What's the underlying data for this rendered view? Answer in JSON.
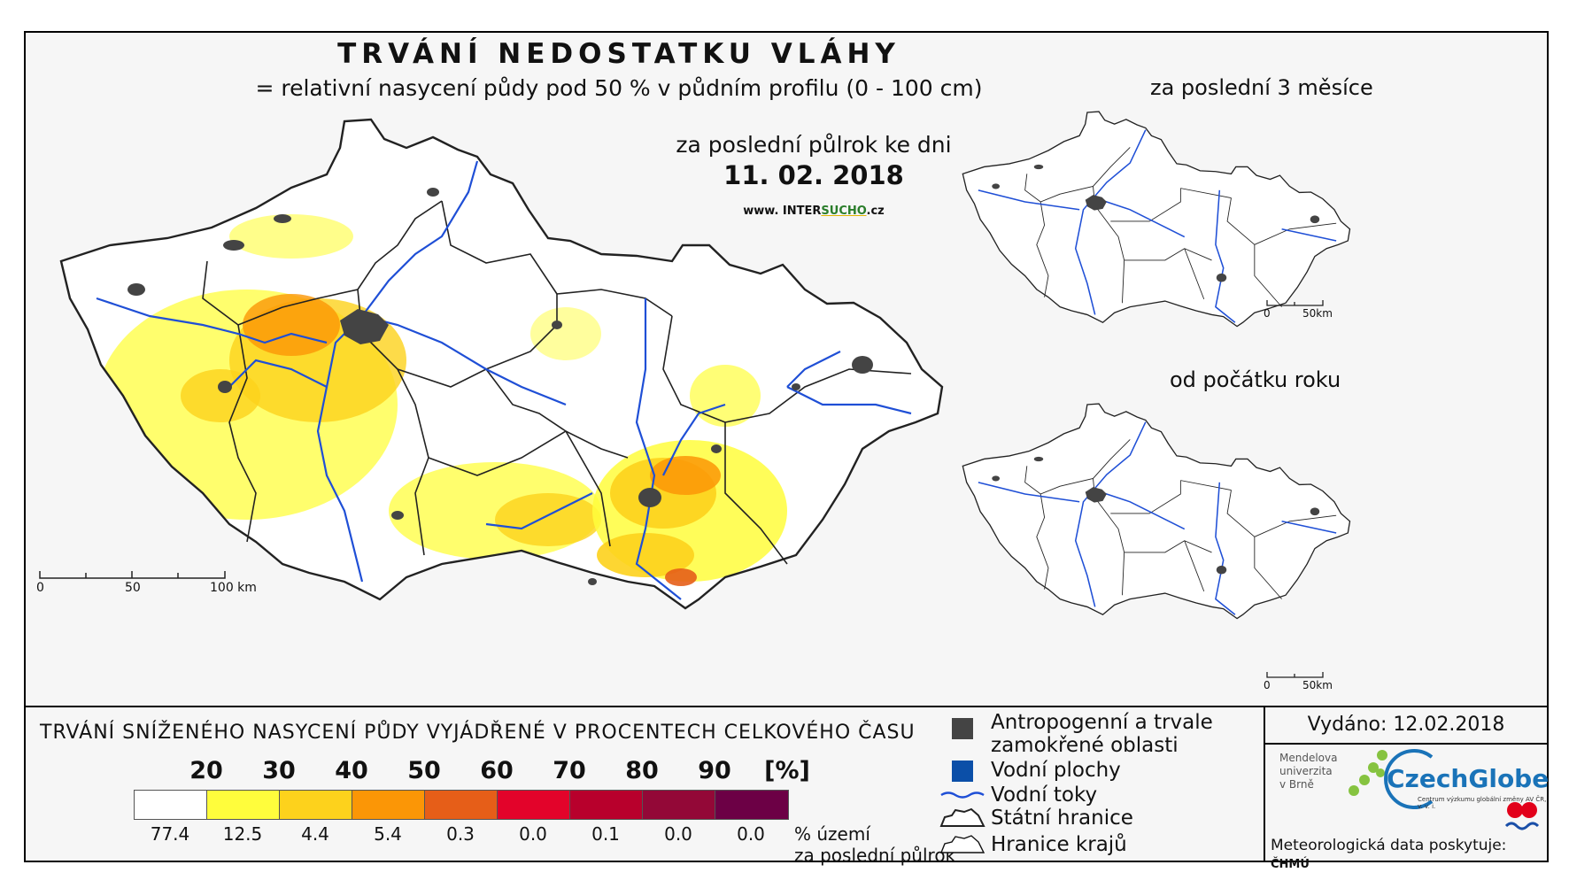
{
  "title": "TRVÁNÍ NEDOSTATKU VLÁHY",
  "subtitle": "= relativní nasycení půdy pod 50 % v půdním profilu (0 - 100 cm)",
  "main_map": {
    "period_label": "za poslední půlrok ke dni",
    "date": "11. 02. 2018",
    "website_prefix": "www. INTER",
    "website_highlight": "SUCHO",
    "website_suffix": ".cz",
    "scale_labels": [
      "0",
      "50",
      "100 km"
    ]
  },
  "inset_top": {
    "title": "za poslední 3 měsíce",
    "scale_labels": [
      "0",
      "50km"
    ]
  },
  "inset_bottom": {
    "title": "od počátku roku",
    "scale_labels": [
      "0",
      "50km"
    ]
  },
  "legend": {
    "title": "TRVÁNÍ SNÍŽENÉHO NASYCENÍ PŮDY VYJÁDŘENÉ V PROCENTECH CELKOVÉHO ČASU",
    "thresholds": [
      "20",
      "30",
      "40",
      "50",
      "60",
      "70",
      "80",
      "90",
      "[%]"
    ],
    "classes": [
      {
        "color": "#ffffff",
        "share": "77.4"
      },
      {
        "color": "#fffd3c",
        "share": "12.5"
      },
      {
        "color": "#fdd21c",
        "share": "4.4"
      },
      {
        "color": "#fb9606",
        "share": "5.4"
      },
      {
        "color": "#e65e18",
        "share": "0.3"
      },
      {
        "color": "#e3032a",
        "share": "0.0"
      },
      {
        "color": "#b8002c",
        "share": "0.1"
      },
      {
        "color": "#930837",
        "share": "0.0"
      },
      {
        "color": "#6c0045",
        "share": "0.0"
      }
    ],
    "share_note_line1": "% území",
    "share_note_line2": "za poslední půlrok"
  },
  "symbols": {
    "anthropogenic_line1": "Antropogenní a trvale",
    "anthropogenic_line2": "zamokřené oblasti",
    "water_bodies": "Vodní plochy",
    "rivers": "Vodní toky",
    "state_border": "Státní hranice",
    "region_border": "Hranice krajů"
  },
  "issued": "Vydáno: 12.02.2018",
  "mendel_logo": [
    "Mendelova",
    "univerzita",
    "v Brně"
  ],
  "czechglobe_logo": "CzechGlobe",
  "czechglobe_sub": "Centrum výzkumu globální změny AV ČR, v. v. i.",
  "credit": "Meteorologická data poskytuje:",
  "credit_org": "ČHMÚ",
  "colors": {
    "river": "#1f4fd6",
    "urban": "#444444",
    "water": "#0b4fa8"
  }
}
